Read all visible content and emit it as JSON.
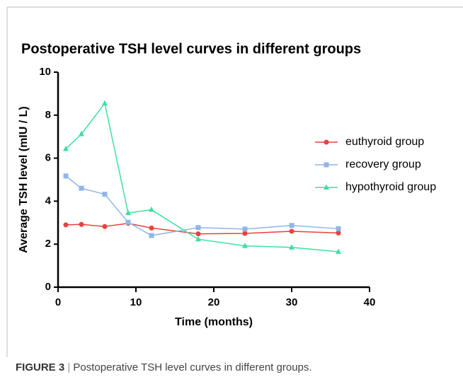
{
  "chart_data": {
    "type": "line",
    "title": "Postoperative TSH level curves in different groups",
    "x_label": "Time (months)",
    "y_label": "Average TSH level (mIU / L)",
    "x": [
      1,
      3,
      6,
      9,
      12,
      18,
      24,
      30,
      36
    ],
    "series": [
      {
        "name": "euthyroid group",
        "color": "#e8413e",
        "marker": "circle",
        "values": [
          2.9,
          2.92,
          2.82,
          2.97,
          2.75,
          2.48,
          2.5,
          2.6,
          2.52
        ]
      },
      {
        "name": "recovery group",
        "color": "#8fb6e8",
        "marker": "square",
        "values": [
          5.17,
          4.6,
          4.32,
          3.02,
          2.4,
          2.77,
          2.7,
          2.87,
          2.72
        ]
      },
      {
        "name": "hypothyroid group",
        "color": "#3de0a0",
        "marker": "triangle",
        "values": [
          6.43,
          7.12,
          8.55,
          3.45,
          3.6,
          2.23,
          1.92,
          1.85,
          1.65
        ]
      }
    ],
    "xlim": [
      0,
      40
    ],
    "xticks": [
      0,
      10,
      20,
      30,
      40
    ],
    "ylim": [
      0,
      10
    ],
    "yticks": [
      0,
      2,
      4,
      6,
      8,
      10
    ],
    "legend": "right"
  },
  "caption": {
    "label": "FIGURE 3",
    "text": "Postoperative TSH level curves in different groups."
  }
}
